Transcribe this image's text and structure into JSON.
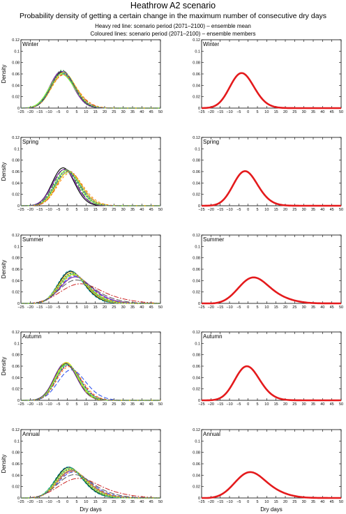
{
  "header": {
    "title": "Heathrow A2 scenario",
    "subtitle": "Probability density of getting a certain change in the maximum number of consecutive dry days",
    "note_heavy": "Heavy red line: scenario period (2071–2100) – ensemble mean",
    "note_coloured": "Coloured lines: scenario period (2071–2100) – ensemble members"
  },
  "axes": {
    "xlabel": "Dry days",
    "ylabel": "Density",
    "xlim": [
      -25,
      50
    ],
    "ylim": [
      0,
      0.12
    ],
    "xticks": [
      "−25",
      "−20",
      "−15",
      "−10",
      "−5",
      "0",
      "5",
      "10",
      "15",
      "20",
      "25",
      "30",
      "35",
      "40",
      "45",
      "50"
    ],
    "yticks": [
      "0",
      "0.02",
      "0.04",
      "0.06",
      "0.08",
      "0.1",
      "0.12"
    ]
  },
  "colors": {
    "ensemble_mean": "#e41a1c",
    "members": [
      "#000000",
      "#3355ee",
      "#22aa33",
      "#cc2222",
      "#7722aa",
      "#11aaaa",
      "#dddd22",
      "#88ee44",
      "#ff8800",
      "#555555",
      "#4444aa"
    ]
  },
  "chart_data": [
    {
      "type": "line",
      "panel": "members",
      "season": "Winter",
      "series": [
        {
          "mean": -2.5,
          "sd": 6.3,
          "skew": 0.1
        },
        {
          "mean": -2.0,
          "sd": 6.6,
          "skew": 0.15
        },
        {
          "mean": -2.8,
          "sd": 6.0,
          "skew": 0.05
        },
        {
          "mean": -1.5,
          "sd": 6.8,
          "skew": 0.2
        },
        {
          "mean": -3.0,
          "sd": 6.2,
          "skew": 0.1
        },
        {
          "mean": -2.2,
          "sd": 6.5,
          "skew": 0.12
        },
        {
          "mean": -1.8,
          "sd": 6.4,
          "skew": 0.1
        },
        {
          "mean": -2.6,
          "sd": 6.7,
          "skew": 0.18
        },
        {
          "mean": -1.2,
          "sd": 6.9,
          "skew": 0.25
        },
        {
          "mean": -2.4,
          "sd": 6.1,
          "skew": 0.08
        },
        {
          "mean": -2.0,
          "sd": 6.3,
          "skew": 0.15
        }
      ]
    },
    {
      "type": "line",
      "panel": "mean",
      "season": "Winter",
      "series": [
        {
          "mean": -3.0,
          "sd": 6.5,
          "skew": 0.15
        }
      ]
    },
    {
      "type": "line",
      "panel": "members",
      "season": "Spring",
      "series": [
        {
          "mean": -2.0,
          "sd": 6.0,
          "skew": 0.1
        },
        {
          "mean": 0.5,
          "sd": 6.8,
          "skew": 0.15
        },
        {
          "mean": -0.5,
          "sd": 6.5,
          "skew": 0.1
        },
        {
          "mean": 1.5,
          "sd": 6.6,
          "skew": 0.2
        },
        {
          "mean": -1.5,
          "sd": 6.3,
          "skew": 0.1
        },
        {
          "mean": 0.8,
          "sd": 6.9,
          "skew": 0.18
        },
        {
          "mean": 1.0,
          "sd": 6.7,
          "skew": 0.12
        },
        {
          "mean": 0.0,
          "sd": 6.4,
          "skew": 0.1
        },
        {
          "mean": 2.0,
          "sd": 7.0,
          "skew": 0.2
        },
        {
          "mean": -1.0,
          "sd": 6.2,
          "skew": 0.1
        },
        {
          "mean": 0.3,
          "sd": 6.6,
          "skew": 0.15
        }
      ]
    },
    {
      "type": "line",
      "panel": "mean",
      "season": "Spring",
      "series": [
        {
          "mean": -1.0,
          "sd": 6.6,
          "skew": 0.2
        }
      ]
    },
    {
      "type": "line",
      "panel": "members",
      "season": "Summer",
      "series": [
        {
          "mean": 3.0,
          "sd": 7.2,
          "skew": 0.35
        },
        {
          "mean": 5.5,
          "sd": 8.5,
          "skew": 0.45
        },
        {
          "mean": 4.0,
          "sd": 7.8,
          "skew": 0.4
        },
        {
          "mean": 10.0,
          "sd": 12.0,
          "skew": 0.55
        },
        {
          "mean": 6.0,
          "sd": 8.8,
          "skew": 0.45
        },
        {
          "mean": 2.5,
          "sd": 7.0,
          "skew": 0.3
        },
        {
          "mean": 3.5,
          "sd": 7.5,
          "skew": 0.35
        },
        {
          "mean": 4.5,
          "sd": 8.0,
          "skew": 0.4
        },
        {
          "mean": 5.0,
          "sd": 8.2,
          "skew": 0.42
        },
        {
          "mean": 7.0,
          "sd": 10.0,
          "skew": 0.5
        },
        {
          "mean": 4.0,
          "sd": 7.6,
          "skew": 0.38
        }
      ]
    },
    {
      "type": "line",
      "panel": "mean",
      "season": "Summer",
      "series": [
        {
          "mean": 5.0,
          "sd": 9.0,
          "skew": 0.5
        }
      ]
    },
    {
      "type": "line",
      "panel": "members",
      "season": "Autumn",
      "series": [
        {
          "mean": -0.5,
          "sd": 6.3,
          "skew": 0.15
        },
        {
          "mean": 3.0,
          "sd": 7.5,
          "skew": 0.25
        },
        {
          "mean": 0.0,
          "sd": 6.2,
          "skew": 0.12
        },
        {
          "mean": 1.0,
          "sd": 6.6,
          "skew": 0.2
        },
        {
          "mean": -0.8,
          "sd": 6.1,
          "skew": 0.12
        },
        {
          "mean": 0.5,
          "sd": 6.4,
          "skew": 0.15
        },
        {
          "mean": -0.3,
          "sd": 6.0,
          "skew": 0.1
        },
        {
          "mean": 0.2,
          "sd": 6.3,
          "skew": 0.15
        },
        {
          "mean": 1.5,
          "sd": 6.8,
          "skew": 0.2
        },
        {
          "mean": -0.6,
          "sd": 6.2,
          "skew": 0.12
        },
        {
          "mean": 0.8,
          "sd": 6.5,
          "skew": 0.18
        }
      ]
    },
    {
      "type": "line",
      "panel": "mean",
      "season": "Autumn",
      "series": [
        {
          "mean": 0.0,
          "sd": 6.7,
          "skew": 0.2
        }
      ]
    },
    {
      "type": "line",
      "panel": "members",
      "season": "Annual",
      "series": [
        {
          "mean": 2.0,
          "sd": 7.5,
          "skew": 0.35
        },
        {
          "mean": 5.0,
          "sd": 9.0,
          "skew": 0.45
        },
        {
          "mean": 3.0,
          "sd": 8.0,
          "skew": 0.38
        },
        {
          "mean": 9.0,
          "sd": 12.0,
          "skew": 0.55
        },
        {
          "mean": 4.0,
          "sd": 8.5,
          "skew": 0.4
        },
        {
          "mean": 1.5,
          "sd": 7.4,
          "skew": 0.3
        },
        {
          "mean": 3.5,
          "sd": 8.2,
          "skew": 0.38
        },
        {
          "mean": 2.5,
          "sd": 7.8,
          "skew": 0.34
        },
        {
          "mean": 4.5,
          "sd": 8.8,
          "skew": 0.42
        },
        {
          "mean": 6.0,
          "sd": 10.0,
          "skew": 0.48
        },
        {
          "mean": 3.0,
          "sd": 8.0,
          "skew": 0.36
        }
      ]
    },
    {
      "type": "line",
      "panel": "mean",
      "season": "Annual",
      "series": [
        {
          "mean": 3.0,
          "sd": 9.0,
          "skew": 0.45
        }
      ]
    }
  ]
}
